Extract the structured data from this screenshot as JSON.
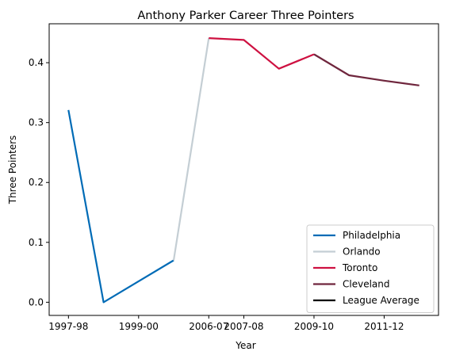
{
  "chart_data": {
    "type": "line",
    "title": "Anthony Parker Career Three Pointers",
    "xlabel": "Year",
    "ylabel": "Three Pointers",
    "x_categories": [
      "1997-98",
      "1998-99",
      "1999-00",
      "2000-01",
      "2006-07",
      "2007-08",
      "2008-09",
      "2009-10",
      "2010-11",
      "2011-12",
      "2012-13"
    ],
    "x_tick_labels": [
      "1997-98",
      "1999-00",
      "2006-07",
      "2007-08",
      "2009-10",
      "2011-12"
    ],
    "x_tick_positions": [
      "1997-98",
      "1999-00",
      "2006-07",
      "2007-08",
      "2009-10",
      "2011-12"
    ],
    "y_ticks": [
      0.0,
      0.1,
      0.2,
      0.3,
      0.4
    ],
    "y_tick_labels": [
      "0.0",
      "0.1",
      "0.2",
      "0.3",
      "0.4"
    ],
    "ylim": [
      -0.022,
      0.465
    ],
    "grid": false,
    "legend_position": "lower-right",
    "series": [
      {
        "name": "Philadelphia",
        "color": "#006bb6",
        "x": [
          "1997-98",
          "1998-99",
          "1999-00",
          "2000-01"
        ],
        "values": [
          0.321,
          0.0,
          0.035,
          0.07
        ]
      },
      {
        "name": "Orlando",
        "color": "#c4ced4",
        "x": [
          "2000-01",
          "2006-07"
        ],
        "values": [
          0.07,
          0.441
        ]
      },
      {
        "name": "Toronto",
        "color": "#ce1141",
        "x": [
          "2006-07",
          "2007-08",
          "2008-09",
          "2009-10"
        ],
        "values": [
          0.441,
          0.438,
          0.39,
          0.414
        ]
      },
      {
        "name": "Cleveland",
        "color": "#6f263d",
        "x": [
          "2009-10",
          "2010-11",
          "2011-12",
          "2012-13"
        ],
        "values": [
          0.414,
          0.379,
          0.37,
          0.362
        ]
      },
      {
        "name": "League Average",
        "color": "#000000",
        "x": [],
        "values": []
      }
    ]
  }
}
